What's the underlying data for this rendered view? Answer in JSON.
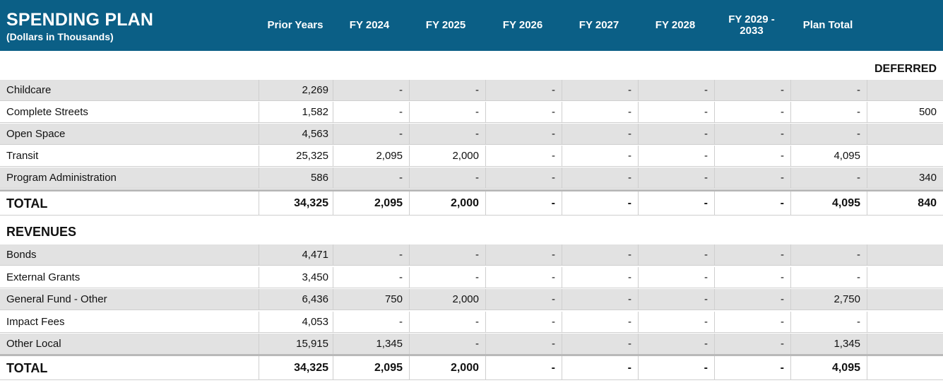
{
  "header": {
    "title": "SPENDING PLAN",
    "subtitle": "(Dollars in Thousands)",
    "columns": [
      "Prior Years",
      "FY 2024",
      "FY 2025",
      "FY 2026",
      "FY 2027",
      "FY 2028",
      "FY 2029 -\n2033",
      "Plan Total"
    ],
    "deferred_label": "DEFERRED"
  },
  "spending": {
    "rows": [
      {
        "label": "Childcare",
        "values": [
          "2,269",
          "-",
          "-",
          "-",
          "-",
          "-",
          "-",
          "-"
        ],
        "deferred": ""
      },
      {
        "label": "Complete Streets",
        "values": [
          "1,582",
          "-",
          "-",
          "-",
          "-",
          "-",
          "-",
          "-"
        ],
        "deferred": "500"
      },
      {
        "label": "Open Space",
        "values": [
          "4,563",
          "-",
          "-",
          "-",
          "-",
          "-",
          "-",
          "-"
        ],
        "deferred": ""
      },
      {
        "label": "Transit",
        "values": [
          "25,325",
          "2,095",
          "2,000",
          "-",
          "-",
          "-",
          "-",
          "4,095"
        ],
        "deferred": ""
      },
      {
        "label": "Program Administration",
        "values": [
          "586",
          "-",
          "-",
          "-",
          "-",
          "-",
          "-",
          "-"
        ],
        "deferred": "340"
      }
    ],
    "total": {
      "label": "TOTAL",
      "values": [
        "34,325",
        "2,095",
        "2,000",
        "-",
        "-",
        "-",
        "-",
        "4,095"
      ],
      "deferred": "840"
    }
  },
  "revenues": {
    "title": "REVENUES",
    "rows": [
      {
        "label": "Bonds",
        "values": [
          "4,471",
          "-",
          "-",
          "-",
          "-",
          "-",
          "-",
          "-"
        ]
      },
      {
        "label": "External Grants",
        "values": [
          "3,450",
          "-",
          "-",
          "-",
          "-",
          "-",
          "-",
          "-"
        ]
      },
      {
        "label": "General Fund - Other",
        "values": [
          "6,436",
          "750",
          "2,000",
          "-",
          "-",
          "-",
          "-",
          "2,750"
        ]
      },
      {
        "label": "Impact Fees",
        "values": [
          "4,053",
          "-",
          "-",
          "-",
          "-",
          "-",
          "-",
          "-"
        ]
      },
      {
        "label": "Other Local",
        "values": [
          "15,915",
          "1,345",
          "-",
          "-",
          "-",
          "-",
          "-",
          "1,345"
        ]
      }
    ],
    "total": {
      "label": "TOTAL",
      "values": [
        "34,325",
        "2,095",
        "2,000",
        "-",
        "-",
        "-",
        "-",
        "4,095"
      ]
    }
  },
  "colors": {
    "header_bg": "#0b5f86",
    "stripe": "#e2e2e2"
  }
}
